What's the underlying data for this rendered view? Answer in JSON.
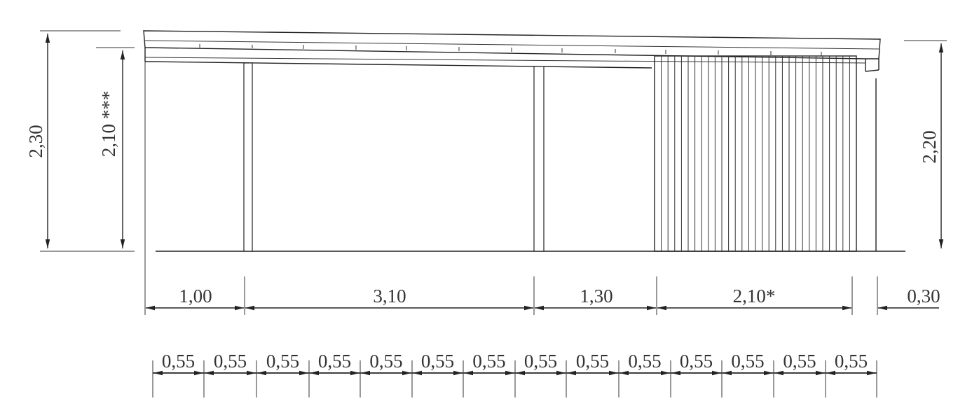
{
  "dimensions": {
    "height_total": "2,30",
    "height_clear": "2,10 ***",
    "height_right": "2,20",
    "spans": [
      "1,00",
      "3,10",
      "1,30",
      "2,10*",
      "0,30"
    ],
    "rafter_spacing": [
      "0,55",
      "0,55",
      "0,55",
      "0,55",
      "0,55",
      "0,55",
      "0,55",
      "0,55",
      "0,55",
      "0,55",
      "0,55",
      "0,55",
      "0,55",
      "0,55"
    ]
  }
}
